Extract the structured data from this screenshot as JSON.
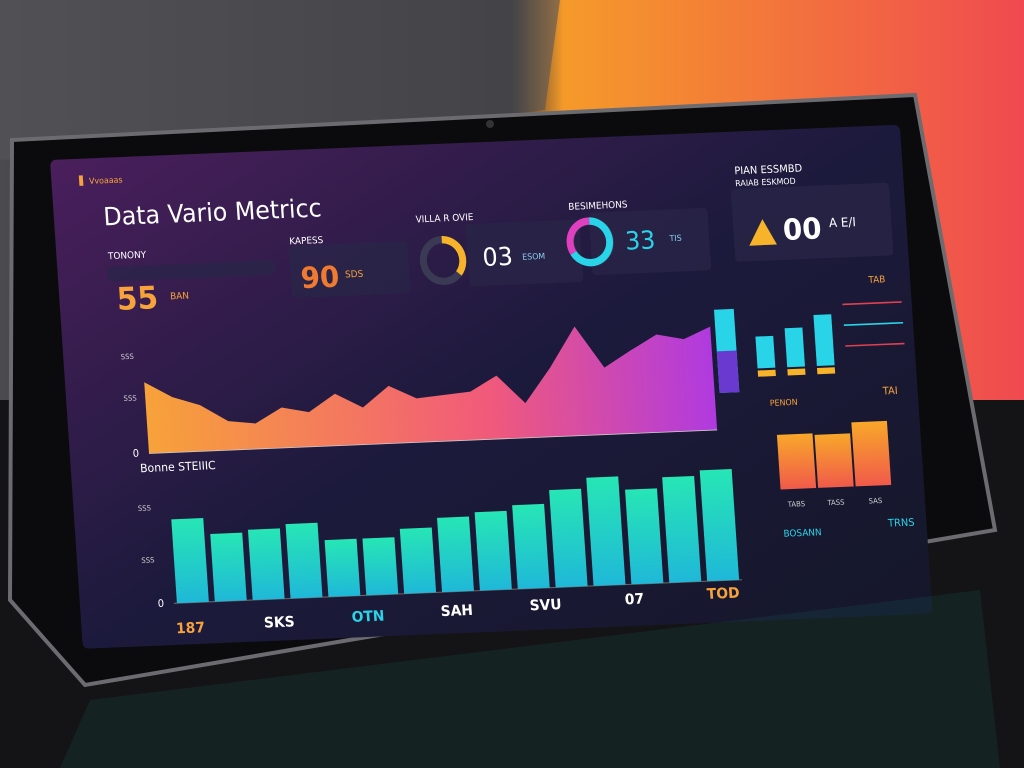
{
  "header": {
    "brand": "Vvoaaas",
    "title": "Data Vario Metricc",
    "panel_title": "PIAN ESSMBD"
  },
  "kpis": [
    {
      "label": "TONONY",
      "value": "55",
      "unit": "BAN"
    },
    {
      "label": "KAPESS",
      "value": "90",
      "unit": "SDS"
    },
    {
      "label": "VILLA R OVIE",
      "value": "03",
      "unit": "ESOM"
    },
    {
      "label": "BESIMEHONS",
      "value": "33",
      "unit": "TIS"
    },
    {
      "label": "RAIAB ESKMOD",
      "value": "00",
      "unit": "A E/I"
    }
  ],
  "area_chart": {
    "ylim": [
      0,
      100
    ],
    "yticks": [
      0
    ],
    "axis_labels": [
      "SSS",
      "SSS"
    ],
    "values": [
      62,
      48,
      40,
      25,
      22,
      35,
      30,
      45,
      32,
      50,
      38,
      40,
      42,
      55,
      30,
      60,
      95,
      58,
      72,
      85,
      80,
      90
    ]
  },
  "bar_chart": {
    "title": "Bonne STEIIIC",
    "ylim": [
      0,
      100
    ],
    "yticks": [
      0
    ],
    "axis_labels": [
      "SSS",
      "SSS"
    ],
    "values": [
      62,
      50,
      52,
      55,
      42,
      42,
      48,
      55,
      58,
      62,
      72,
      80,
      70,
      78,
      82
    ],
    "labels": [
      "187",
      "SKS",
      "OTN",
      "SAH",
      "SVU",
      "07",
      "TOD"
    ]
  },
  "side_bars": {
    "title": "TAB",
    "ylim": [
      0,
      100
    ],
    "values": [
      45,
      55,
      72
    ]
  },
  "side_chart": {
    "title": "PENON",
    "value": "TAI",
    "ylim": [
      0,
      100
    ],
    "values": [
      70,
      68,
      82
    ],
    "labels": [
      "TABS",
      "TASS",
      "SAS"
    ],
    "footer": "BOSANN",
    "footer_right": "TRNS"
  }
}
